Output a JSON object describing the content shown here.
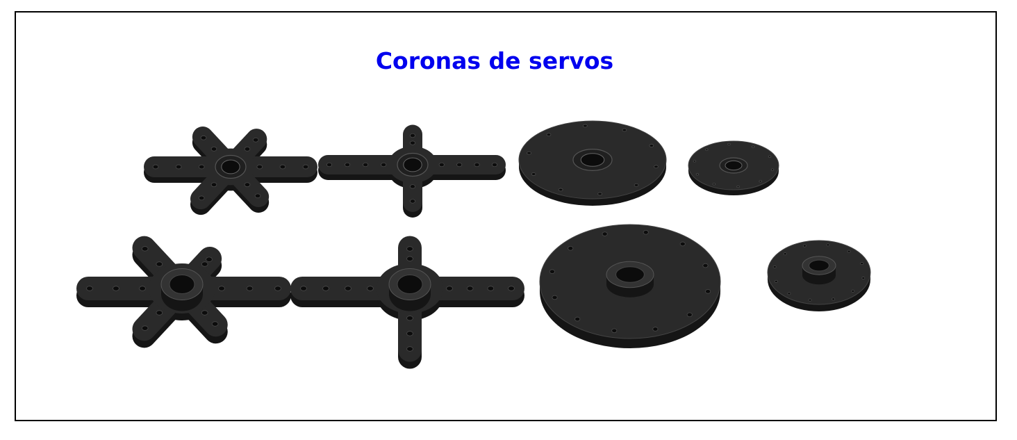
{
  "title": "Coronas de servos",
  "colors": {
    "title": "#0000ee",
    "part_top": "#2a2a2a",
    "part_side": "#151515",
    "hole": "#0c0c0c",
    "hole_rim": "#4a4a4a",
    "frame": "#000000",
    "background": "#ffffff"
  },
  "parts": [
    {
      "name": "horn-6-arm-small",
      "shape": "star",
      "arms": 6
    },
    {
      "name": "horn-4-arm-small",
      "shape": "cross",
      "arms": 4
    },
    {
      "name": "disc-large-small-hub",
      "shape": "disc"
    },
    {
      "name": "disc-small-small-hub",
      "shape": "disc"
    },
    {
      "name": "horn-6-arm-large",
      "shape": "star",
      "arms": 6
    },
    {
      "name": "horn-4-arm-large",
      "shape": "cross",
      "arms": 4
    },
    {
      "name": "disc-large-large-hub",
      "shape": "disc"
    },
    {
      "name": "disc-small-large-hub",
      "shape": "disc"
    }
  ]
}
